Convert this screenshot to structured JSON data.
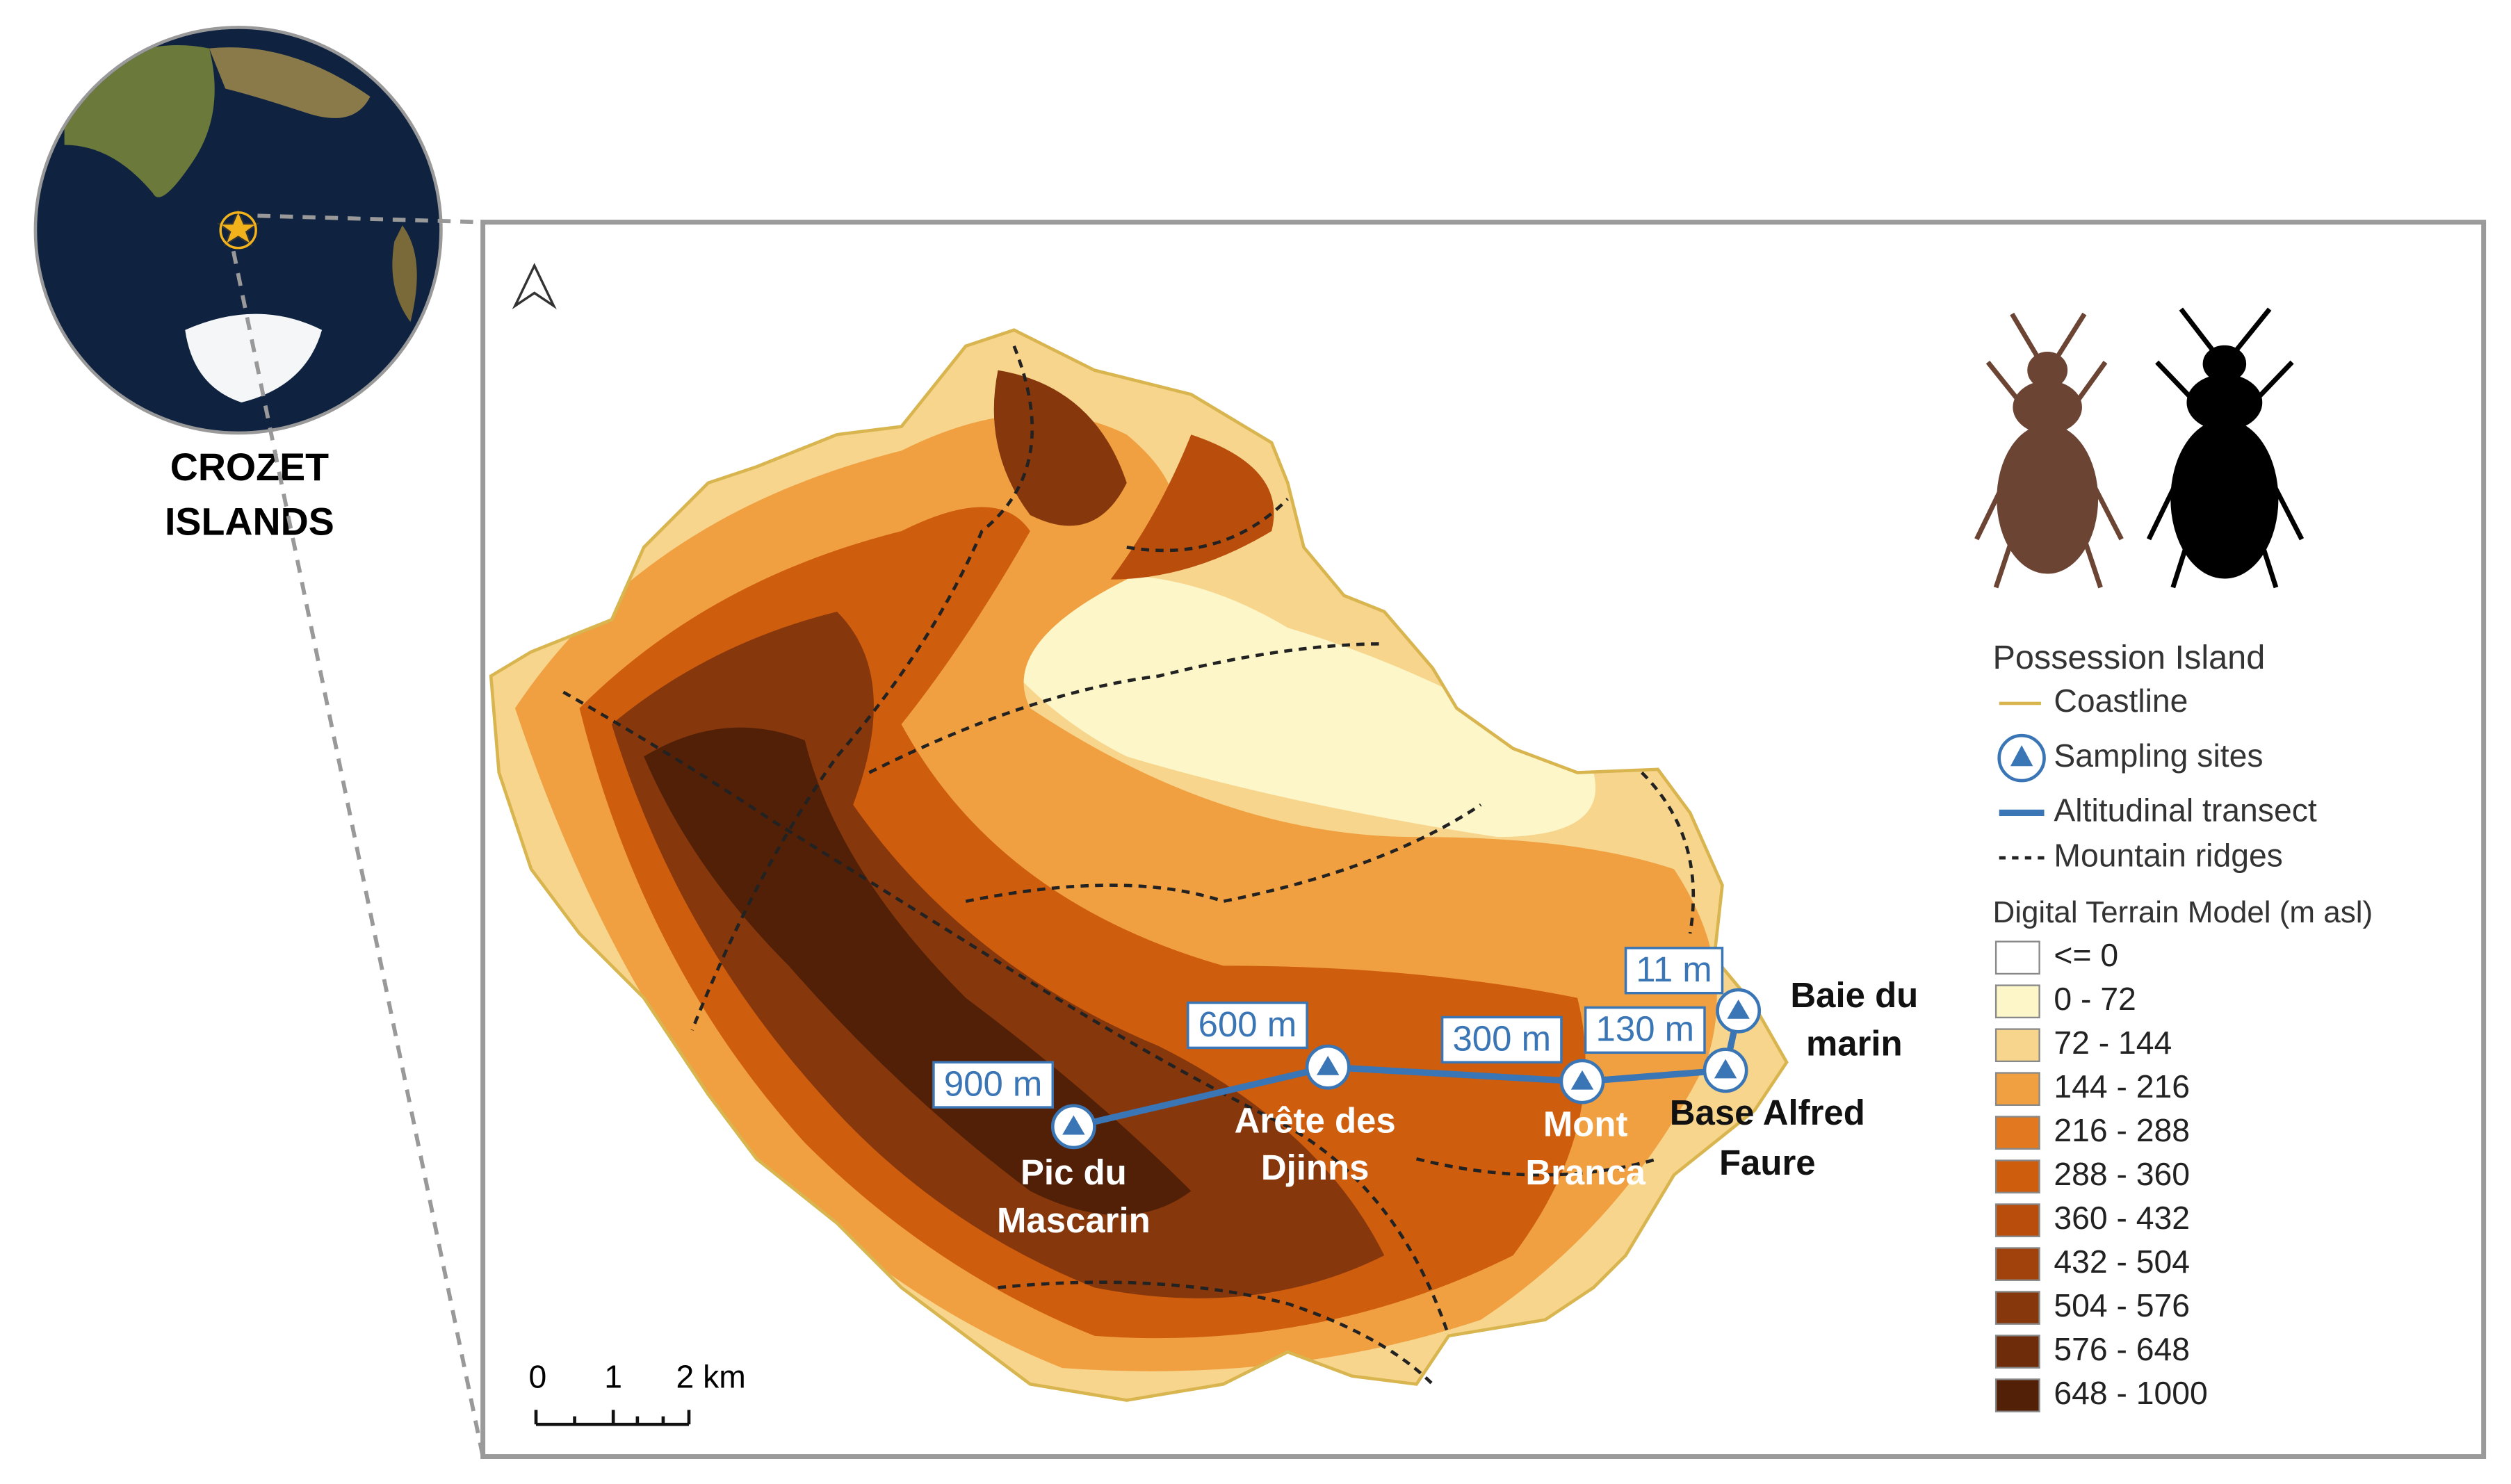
{
  "inset": {
    "label_lines": [
      "CROZET",
      "ISLANDS"
    ]
  },
  "legend": {
    "title": "Possession Island",
    "items": [
      {
        "label": "Coastline",
        "color": "#d9b550"
      },
      {
        "label": "Sampling sites",
        "color": "#3a75b5"
      },
      {
        "label": "Altitudinal transect",
        "color": "#3a75b5"
      },
      {
        "label": "Mountain ridges",
        "color": "#222222"
      }
    ],
    "dtm_title": "Digital Terrain Model (m asl)",
    "classes": [
      {
        "label": "<= 0",
        "color": "#ffffff"
      },
      {
        "label": "0 - 72",
        "color": "#fdf6c8"
      },
      {
        "label": "72 - 144",
        "color": "#f7d58d"
      },
      {
        "label": "144 - 216",
        "color": "#f0a040"
      },
      {
        "label": "216 - 288",
        "color": "#e2781f"
      },
      {
        "label": "288 - 360",
        "color": "#cf5d0e"
      },
      {
        "label": "360 - 432",
        "color": "#b94e0c"
      },
      {
        "label": "432 - 504",
        "color": "#a1420c"
      },
      {
        "label": "504 - 576",
        "color": "#87370c"
      },
      {
        "label": "576 - 648",
        "color": "#6e2c0a"
      },
      {
        "label": "648 - 1000",
        "color": "#522007"
      }
    ]
  },
  "sites": [
    {
      "name_lines": [
        "Pic du",
        "Mascarin"
      ],
      "elevation": "900 m",
      "label_color": "#ffffff"
    },
    {
      "name_lines": [
        "Arête des",
        "Djinns"
      ],
      "elevation": "600 m",
      "label_color": "#ffffff"
    },
    {
      "name_lines": [
        "Mont",
        "Branca"
      ],
      "elevation": "300 m",
      "label_color": "#ffffff"
    },
    {
      "name_lines": [
        "Base Alfred",
        "Faure"
      ],
      "elevation": "130 m",
      "label_color": "#111111"
    },
    {
      "name_lines": [
        "Baie du",
        "marin"
      ],
      "elevation": "11 m",
      "label_color": "#111111"
    }
  ],
  "scale_bar": {
    "labels": [
      "0",
      "1",
      "2 km"
    ]
  }
}
